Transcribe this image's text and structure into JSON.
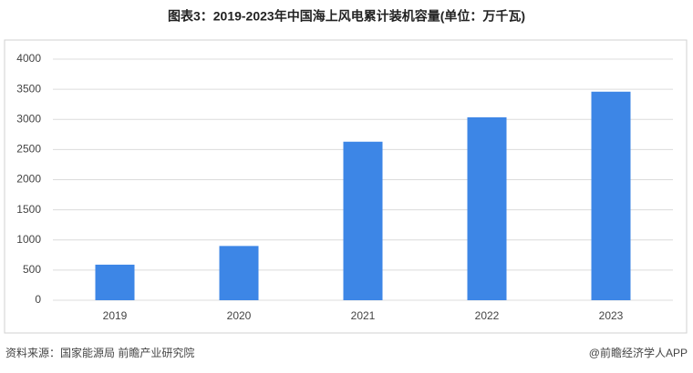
{
  "chart_data": {
    "type": "bar",
    "title": "图表3：2019-2023年中国海上风电累计装机容量(单位：万千瓦)",
    "categories": [
      "2019",
      "2020",
      "2021",
      "2022",
      "2023"
    ],
    "values": [
      590,
      900,
      2630,
      3035,
      3460
    ],
    "color": "#3d86e6",
    "ylim": [
      0,
      4000
    ],
    "yticks": [
      0,
      500,
      1000,
      1500,
      2000,
      2500,
      3000,
      3500,
      4000
    ],
    "grid": true,
    "source": "资料来源：国家能源局 前瞻产业研究院",
    "credit": "@前瞻经济学人APP"
  }
}
